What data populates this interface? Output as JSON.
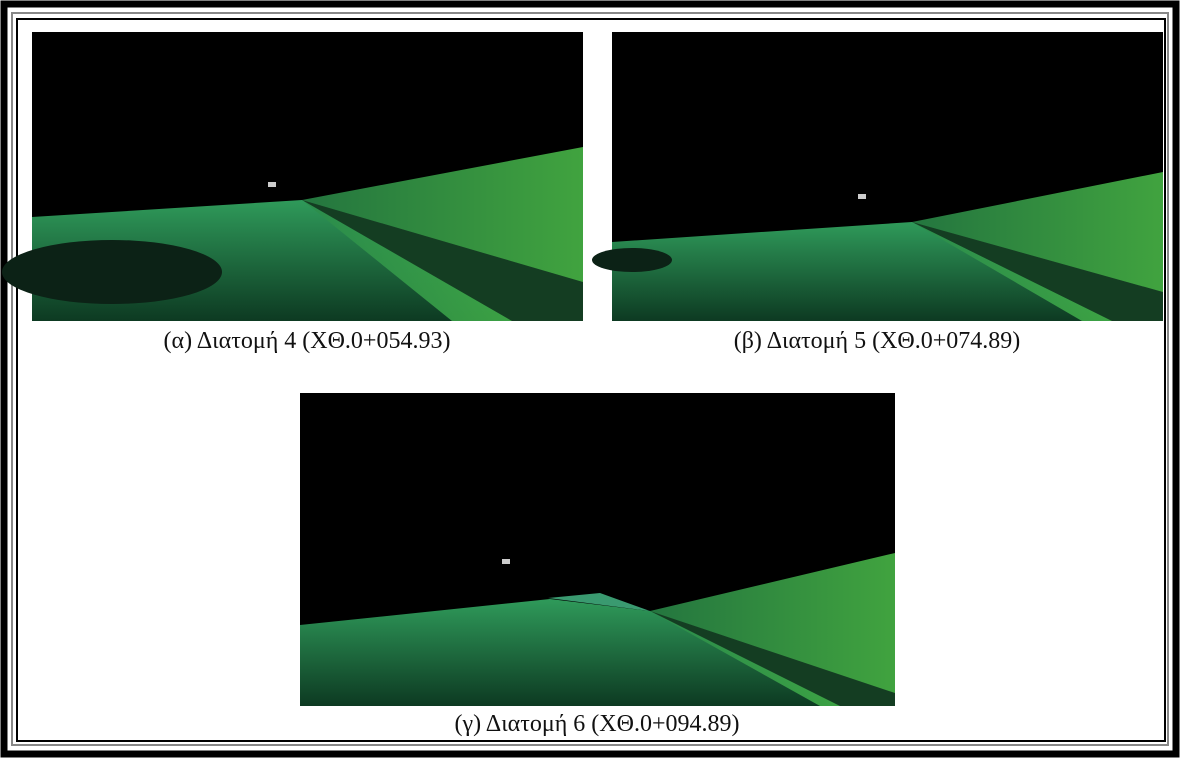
{
  "figure": {
    "panels": [
      {
        "caption": "(α) Διατομή 4 (ΧΘ.0+054.93)"
      },
      {
        "caption": "(β) Διατομή 5 (ΧΘ.0+074.89)"
      },
      {
        "caption": "(γ) Διατομή 6 (ΧΘ.0+094.89)"
      }
    ]
  }
}
